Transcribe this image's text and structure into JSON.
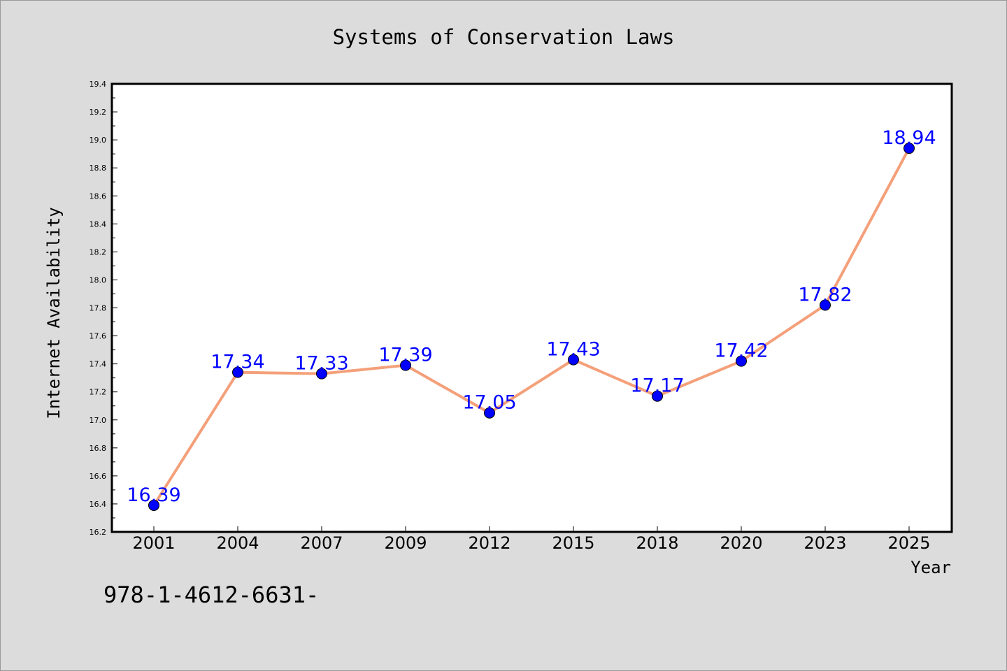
{
  "chart_data": {
    "type": "line",
    "title": "Systems of Conservation Laws",
    "xlabel": "Year",
    "ylabel": "Internet Availability",
    "categories": [
      "2001",
      "2004",
      "2007",
      "2009",
      "2012",
      "2015",
      "2018",
      "2020",
      "2023",
      "2025"
    ],
    "series": [
      {
        "values": [
          16.39,
          17.34,
          17.33,
          17.39,
          17.05,
          17.43,
          17.17,
          17.42,
          17.82,
          18.94
        ],
        "data_labels": [
          "16.39",
          "17.34",
          "17.33",
          "17.39",
          "17.05",
          "17.43",
          "17.17",
          "17.42",
          "17.82",
          "18.94"
        ]
      }
    ],
    "ylim": [
      16.2,
      19.4
    ],
    "yticks": [
      "16.2",
      "16.4",
      "16.6",
      "16.8",
      "17.0",
      "17.2",
      "17.4",
      "17.6",
      "17.8",
      "18.0",
      "18.2",
      "18.4",
      "18.6",
      "18.8",
      "19.0",
      "19.2",
      "19.4"
    ],
    "grid": false,
    "legend": "none",
    "colors": {
      "line": "#f4a07a",
      "marker": "#0000ff",
      "data_label": "#0000ff",
      "plot_background": "#ffffff",
      "page_background": "#dcdcdc"
    }
  },
  "footnote": "978-1-4612-6631-"
}
